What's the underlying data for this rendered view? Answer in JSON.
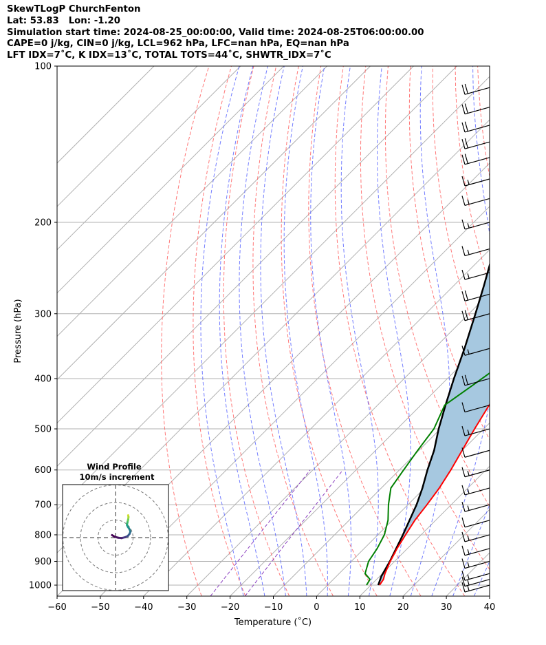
{
  "header": {
    "line1": "SkewTLogP ChurchFenton",
    "line2": "Lat: 53.83   Lon: -1.20",
    "line3": "Simulation start time: 2024-08-25_00:00:00, Valid time: 2024-08-25T06:00:00.00",
    "line4": "CAPE=0 j/kg, CIN=0 j/kg, LCL=962 hPa, LFC=nan hPa, EQ=nan hPa",
    "line5": "LFT IDX=7˚C, K IDX=13˚C, TOTAL TOTS=44˚C, SHWTR_IDX=7˚C"
  },
  "chart_data": {
    "type": "line",
    "subtype": "skew-T log-P diagram",
    "xlabel": "Temperature (˚C)",
    "ylabel": "Pressure (hPa)",
    "xlim": [
      -60,
      40
    ],
    "ylim": [
      1050,
      100
    ],
    "y_scale": "log",
    "x_ticks": [
      -60,
      -50,
      -40,
      -30,
      -20,
      -10,
      0,
      10,
      20,
      30,
      40
    ],
    "x_tick_labels": [
      "−60",
      "−50",
      "−40",
      "−30",
      "−20",
      "−10",
      "0",
      "10",
      "20",
      "30",
      "40"
    ],
    "y_ticks": [
      1000,
      900,
      800,
      700,
      600,
      500,
      400,
      300,
      200,
      100
    ],
    "y_tick_labels": [
      "1000",
      "900",
      "800",
      "700",
      "600",
      "500",
      "400",
      "300",
      "200",
      "100"
    ],
    "grid": true,
    "colors": {
      "temperature": "#ff0000",
      "dewpoint": "#008000",
      "parcel": "#000000",
      "shading": "#a6c8e0",
      "isotherms": "#b0b0b0",
      "dry_adiabats": "#ff6060",
      "moist_adiabats": "#5a66ff",
      "mixing_ratio": "#8a3fbf"
    },
    "series": [
      {
        "key": "temperature",
        "points": [
          [
            12,
            1000
          ],
          [
            11.6,
            975
          ],
          [
            10.6,
            950
          ],
          [
            9,
            900
          ],
          [
            7.6,
            850
          ],
          [
            6.4,
            800
          ],
          [
            5.2,
            750
          ],
          [
            4.4,
            700
          ],
          [
            3.4,
            650
          ],
          [
            1.9,
            600
          ],
          [
            0,
            550
          ],
          [
            -2.1,
            500
          ],
          [
            -4.2,
            450
          ],
          [
            -6.6,
            400
          ],
          [
            -8.6,
            350
          ],
          [
            -9.2,
            300
          ],
          [
            -8.2,
            270
          ],
          [
            -5.5,
            250
          ],
          [
            -1.5,
            230
          ],
          [
            4.5,
            200
          ],
          [
            10.5,
            175
          ],
          [
            15.5,
            155
          ],
          [
            18.5,
            140
          ],
          [
            21,
            125
          ],
          [
            23,
            110
          ],
          [
            24.5,
            100
          ]
        ]
      },
      {
        "key": "dewpoint",
        "points": [
          [
            9,
            1000
          ],
          [
            8.5,
            975
          ],
          [
            6,
            950
          ],
          [
            4,
            900
          ],
          [
            3,
            850
          ],
          [
            1.5,
            800
          ],
          [
            -1,
            750
          ],
          [
            -4.5,
            700
          ],
          [
            -7.8,
            650
          ],
          [
            -9,
            600
          ],
          [
            -10.3,
            550
          ],
          [
            -11.5,
            500
          ],
          [
            -14.5,
            450
          ],
          [
            -12.5,
            410
          ],
          [
            -11.5,
            390
          ],
          [
            -12,
            370
          ],
          [
            -14,
            350
          ],
          [
            -15.5,
            325
          ],
          [
            -16.5,
            300
          ],
          [
            -16.2,
            280
          ],
          [
            -16.7,
            250
          ],
          [
            -17.8,
            225
          ],
          [
            -20.5,
            210
          ],
          [
            -25,
            200
          ],
          [
            -29,
            185
          ],
          [
            -25,
            170
          ],
          [
            -17,
            150
          ],
          [
            -11,
            130
          ],
          [
            -4.8,
            110
          ],
          [
            -1,
            100
          ]
        ]
      },
      {
        "key": "parcel",
        "points": [
          [
            11.7,
            1000
          ],
          [
            10.4,
            962
          ],
          [
            8.9,
            900
          ],
          [
            5.8,
            800
          ],
          [
            2.0,
            700
          ],
          [
            -0.5,
            650
          ],
          [
            -3.5,
            600
          ],
          [
            -6.5,
            550
          ],
          [
            -10.4,
            500
          ],
          [
            -14.3,
            450
          ],
          [
            -18.5,
            400
          ],
          [
            -23.0,
            350
          ],
          [
            -28.5,
            300
          ],
          [
            -33.0,
            265
          ],
          [
            -37.5,
            235
          ],
          [
            -41.0,
            210
          ],
          [
            -43.5,
            195
          ],
          [
            -47.5,
            170
          ],
          [
            -51.5,
            145
          ],
          [
            -54.5,
            125
          ],
          [
            -57.3,
            110
          ],
          [
            -58.8,
            100
          ]
        ]
      }
    ],
    "wind_barbs": [
      {
        "pressure": 1000,
        "speed_kt": 15
      },
      {
        "pressure": 975,
        "speed_kt": 15
      },
      {
        "pressure": 950,
        "speed_kt": 15
      },
      {
        "pressure": 900,
        "speed_kt": 15
      },
      {
        "pressure": 850,
        "speed_kt": 15
      },
      {
        "pressure": 800,
        "speed_kt": 15
      },
      {
        "pressure": 750,
        "speed_kt": 10
      },
      {
        "pressure": 700,
        "speed_kt": 15
      },
      {
        "pressure": 650,
        "speed_kt": 15
      },
      {
        "pressure": 600,
        "speed_kt": 15
      },
      {
        "pressure": 550,
        "speed_kt": 10
      },
      {
        "pressure": 500,
        "speed_kt": 15
      },
      {
        "pressure": 450,
        "speed_kt": 10
      },
      {
        "pressure": 400,
        "speed_kt": 20
      },
      {
        "pressure": 350,
        "speed_kt": 15
      },
      {
        "pressure": 300,
        "speed_kt": 20
      },
      {
        "pressure": 275,
        "speed_kt": 20
      },
      {
        "pressure": 250,
        "speed_kt": 15
      },
      {
        "pressure": 225,
        "speed_kt": 15
      },
      {
        "pressure": 200,
        "speed_kt": 15
      },
      {
        "pressure": 180,
        "speed_kt": 15
      },
      {
        "pressure": 165,
        "speed_kt": 15
      },
      {
        "pressure": 150,
        "speed_kt": 20
      },
      {
        "pressure": 140,
        "speed_kt": 20
      },
      {
        "pressure": 130,
        "speed_kt": 20
      },
      {
        "pressure": 120,
        "speed_kt": 20
      },
      {
        "pressure": 110,
        "speed_kt": 20
      }
    ],
    "wind_profile_inset": {
      "title_line1": "Wind Profile",
      "title_line2": "10m/s increment",
      "ring_count": 3,
      "hodograph_uv_ms": [
        [
          7.2,
          -1.0
        ],
        [
          7.4,
          -2.0
        ],
        [
          7.2,
          -3.5
        ],
        [
          6.8,
          -5.0
        ],
        [
          6.5,
          -6.5
        ],
        [
          7.0,
          -7.5
        ],
        [
          8.0,
          -9.0
        ],
        [
          8.5,
          -10.3
        ],
        [
          8.0,
          -11.6
        ],
        [
          7.0,
          -12.8
        ],
        [
          5.5,
          -13.5
        ],
        [
          3.5,
          -14.0
        ],
        [
          1.5,
          -13.8
        ],
        [
          -0.5,
          -13.2
        ],
        [
          -2.0,
          -12.3
        ]
      ]
    }
  }
}
